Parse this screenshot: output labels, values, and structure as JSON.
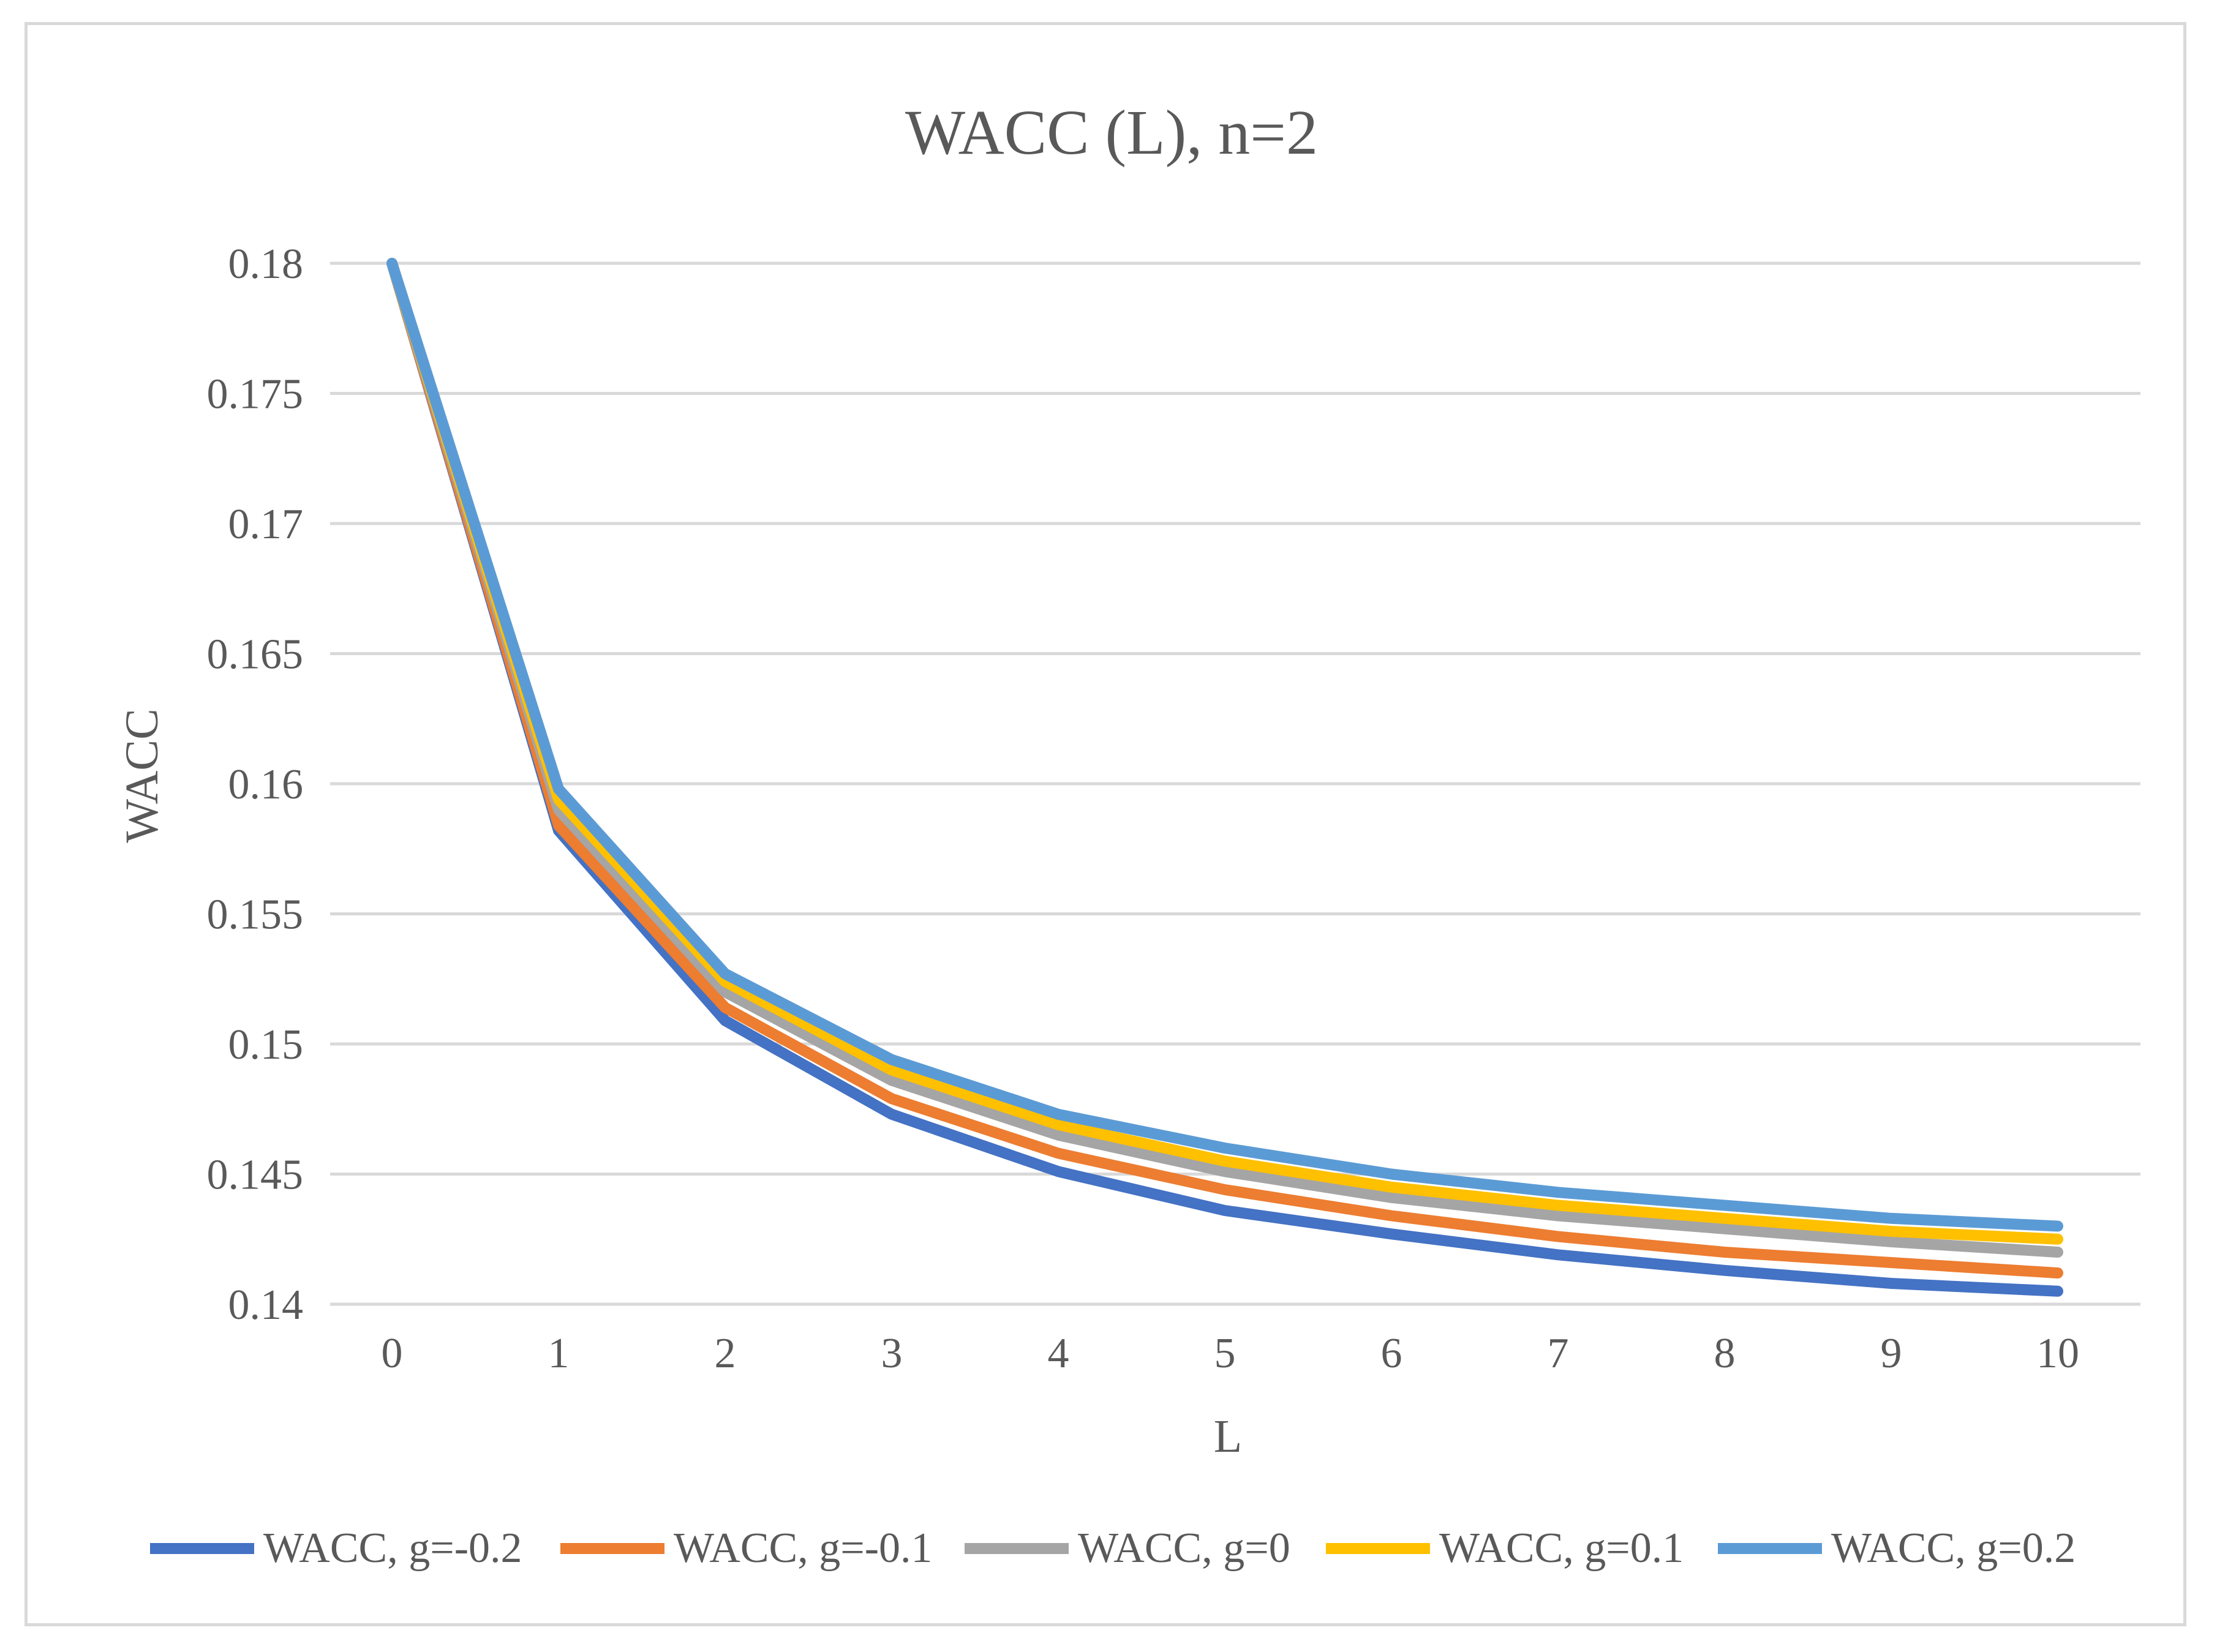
{
  "chart_data": {
    "type": "line",
    "title": "WACC (L), n=2",
    "xlabel": "L",
    "ylabel": "WACC",
    "x": [
      0,
      1,
      2,
      3,
      4,
      5,
      6,
      7,
      8,
      9,
      10
    ],
    "x_tick_labels": [
      "0",
      "1",
      "2",
      "3",
      "4",
      "5",
      "6",
      "7",
      "8",
      "9",
      "10"
    ],
    "ylim": [
      0.14,
      0.18
    ],
    "y_ticks": [
      0.14,
      0.145,
      0.15,
      0.155,
      0.16,
      0.165,
      0.17,
      0.175,
      0.18
    ],
    "y_tick_labels": [
      "0.14",
      "0.145",
      "0.15",
      "0.155",
      "0.16",
      "0.165",
      "0.17",
      "0.175",
      "0.18"
    ],
    "grid": true,
    "legend_position": "bottom",
    "series": [
      {
        "name": "WACC, g=-0.2",
        "color": "#4472c4",
        "values": [
          0.18,
          0.1582,
          0.1509,
          0.1473,
          0.1451,
          0.1436,
          0.1427,
          0.1419,
          0.1413,
          0.1408,
          0.1405
        ]
      },
      {
        "name": "WACC, g=-0.1",
        "color": "#ed7d31",
        "values": [
          0.18,
          0.1584,
          0.1514,
          0.1479,
          0.1458,
          0.1444,
          0.1434,
          0.1426,
          0.142,
          0.1416,
          0.1412
        ]
      },
      {
        "name": "WACC, g=0",
        "color": "#a5a5a5",
        "values": [
          0.18,
          0.159,
          0.152,
          0.1486,
          0.1465,
          0.1451,
          0.1441,
          0.1434,
          0.1429,
          0.1424,
          0.142
        ]
      },
      {
        "name": "WACC, g=0.1",
        "color": "#ffc000",
        "values": [
          0.18,
          0.1594,
          0.1524,
          0.149,
          0.1469,
          0.1455,
          0.1445,
          0.1438,
          0.1433,
          0.1428,
          0.1425
        ]
      },
      {
        "name": "WACC, g=0.2",
        "color": "#5b9bd5",
        "values": [
          0.18,
          0.1598,
          0.1527,
          0.1494,
          0.1473,
          0.146,
          0.145,
          0.1443,
          0.1438,
          0.1433,
          0.143
        ]
      }
    ]
  }
}
